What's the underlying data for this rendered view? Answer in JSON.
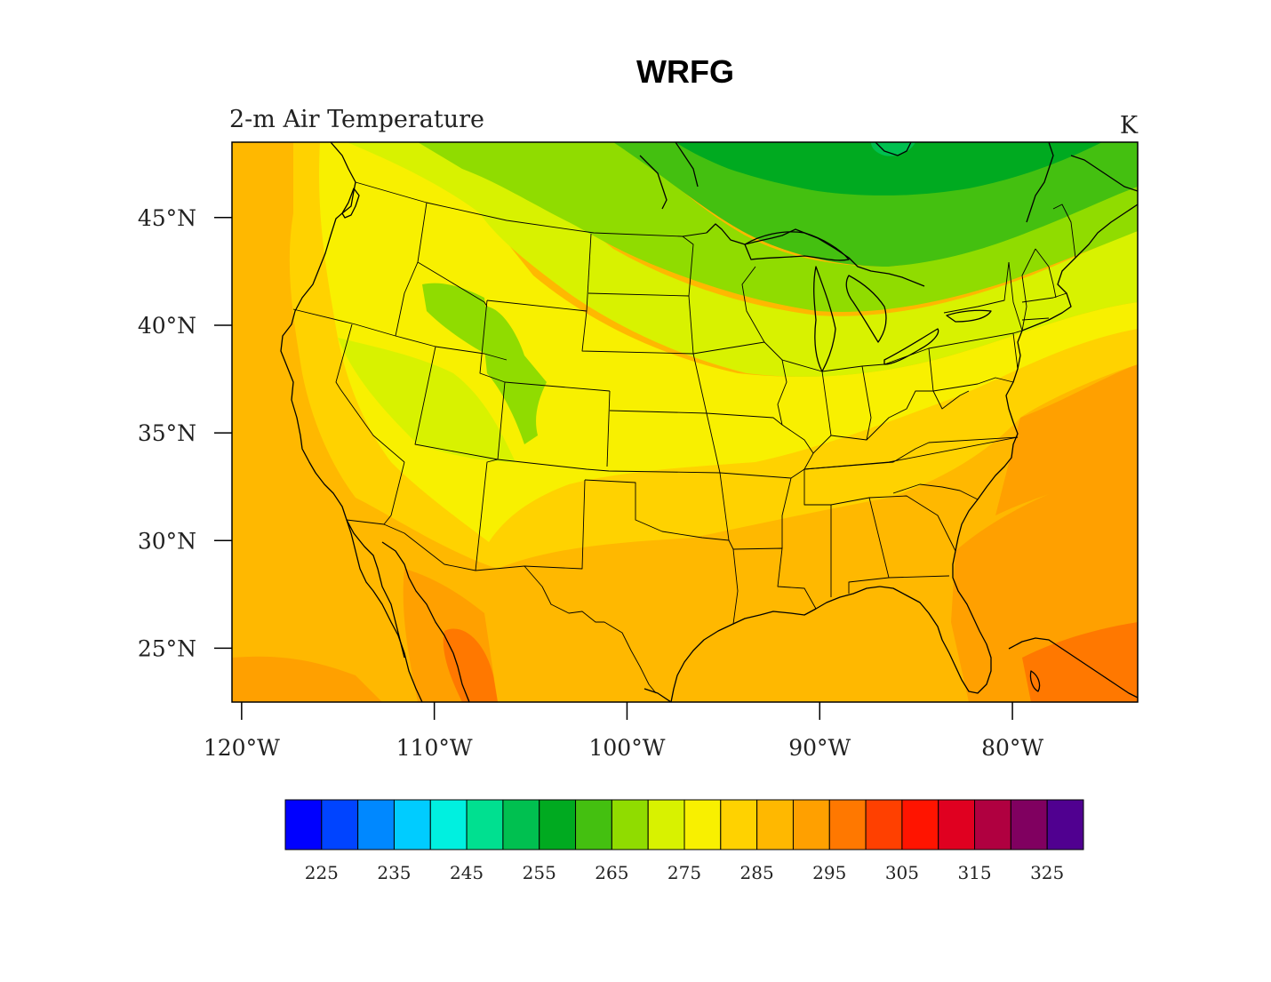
{
  "title": "WRFG",
  "variable_label": "2-m Air Temperature",
  "units_label": "K",
  "map": {
    "lon_range": [
      -120.5,
      -73.5
    ],
    "lat_range": [
      22.5,
      48.5
    ],
    "lat_ticks": [
      {
        "value": 45,
        "label": "45°N"
      },
      {
        "value": 40,
        "label": "40°N"
      },
      {
        "value": 35,
        "label": "35°N"
      },
      {
        "value": 30,
        "label": "30°N"
      },
      {
        "value": 25,
        "label": "25°N"
      }
    ],
    "lon_ticks": [
      {
        "value": -120,
        "label": "120°W"
      },
      {
        "value": -110,
        "label": "110°W"
      },
      {
        "value": -100,
        "label": "100°W"
      },
      {
        "value": -90,
        "label": "90°W"
      },
      {
        "value": -80,
        "label": "80°W"
      }
    ]
  },
  "colorbar": {
    "colors": [
      "#0000ff",
      "#0044ff",
      "#0088ff",
      "#00ccff",
      "#00f0e0",
      "#00e090",
      "#00c050",
      "#00aa20",
      "#44c010",
      "#90dc00",
      "#d8f200",
      "#f8f000",
      "#ffd200",
      "#ffb800",
      "#ffa000",
      "#ff7800",
      "#ff4000",
      "#ff1400",
      "#e00020",
      "#b00040",
      "#800060",
      "#500090"
    ],
    "tick_labels": [
      "225",
      "235",
      "245",
      "255",
      "265",
      "275",
      "285",
      "295",
      "305",
      "315",
      "325"
    ]
  },
  "field_colors": {
    "bg": "#ffb800",
    "warm_ocean": "#ffa000",
    "hot": "#ff7800",
    "mild": "#ffd200",
    "cool": "#f8f000",
    "cooler": "#d8f200",
    "cold": "#90dc00",
    "colder": "#44c010",
    "coldest": "#00aa20",
    "lake": "#00c050"
  }
}
